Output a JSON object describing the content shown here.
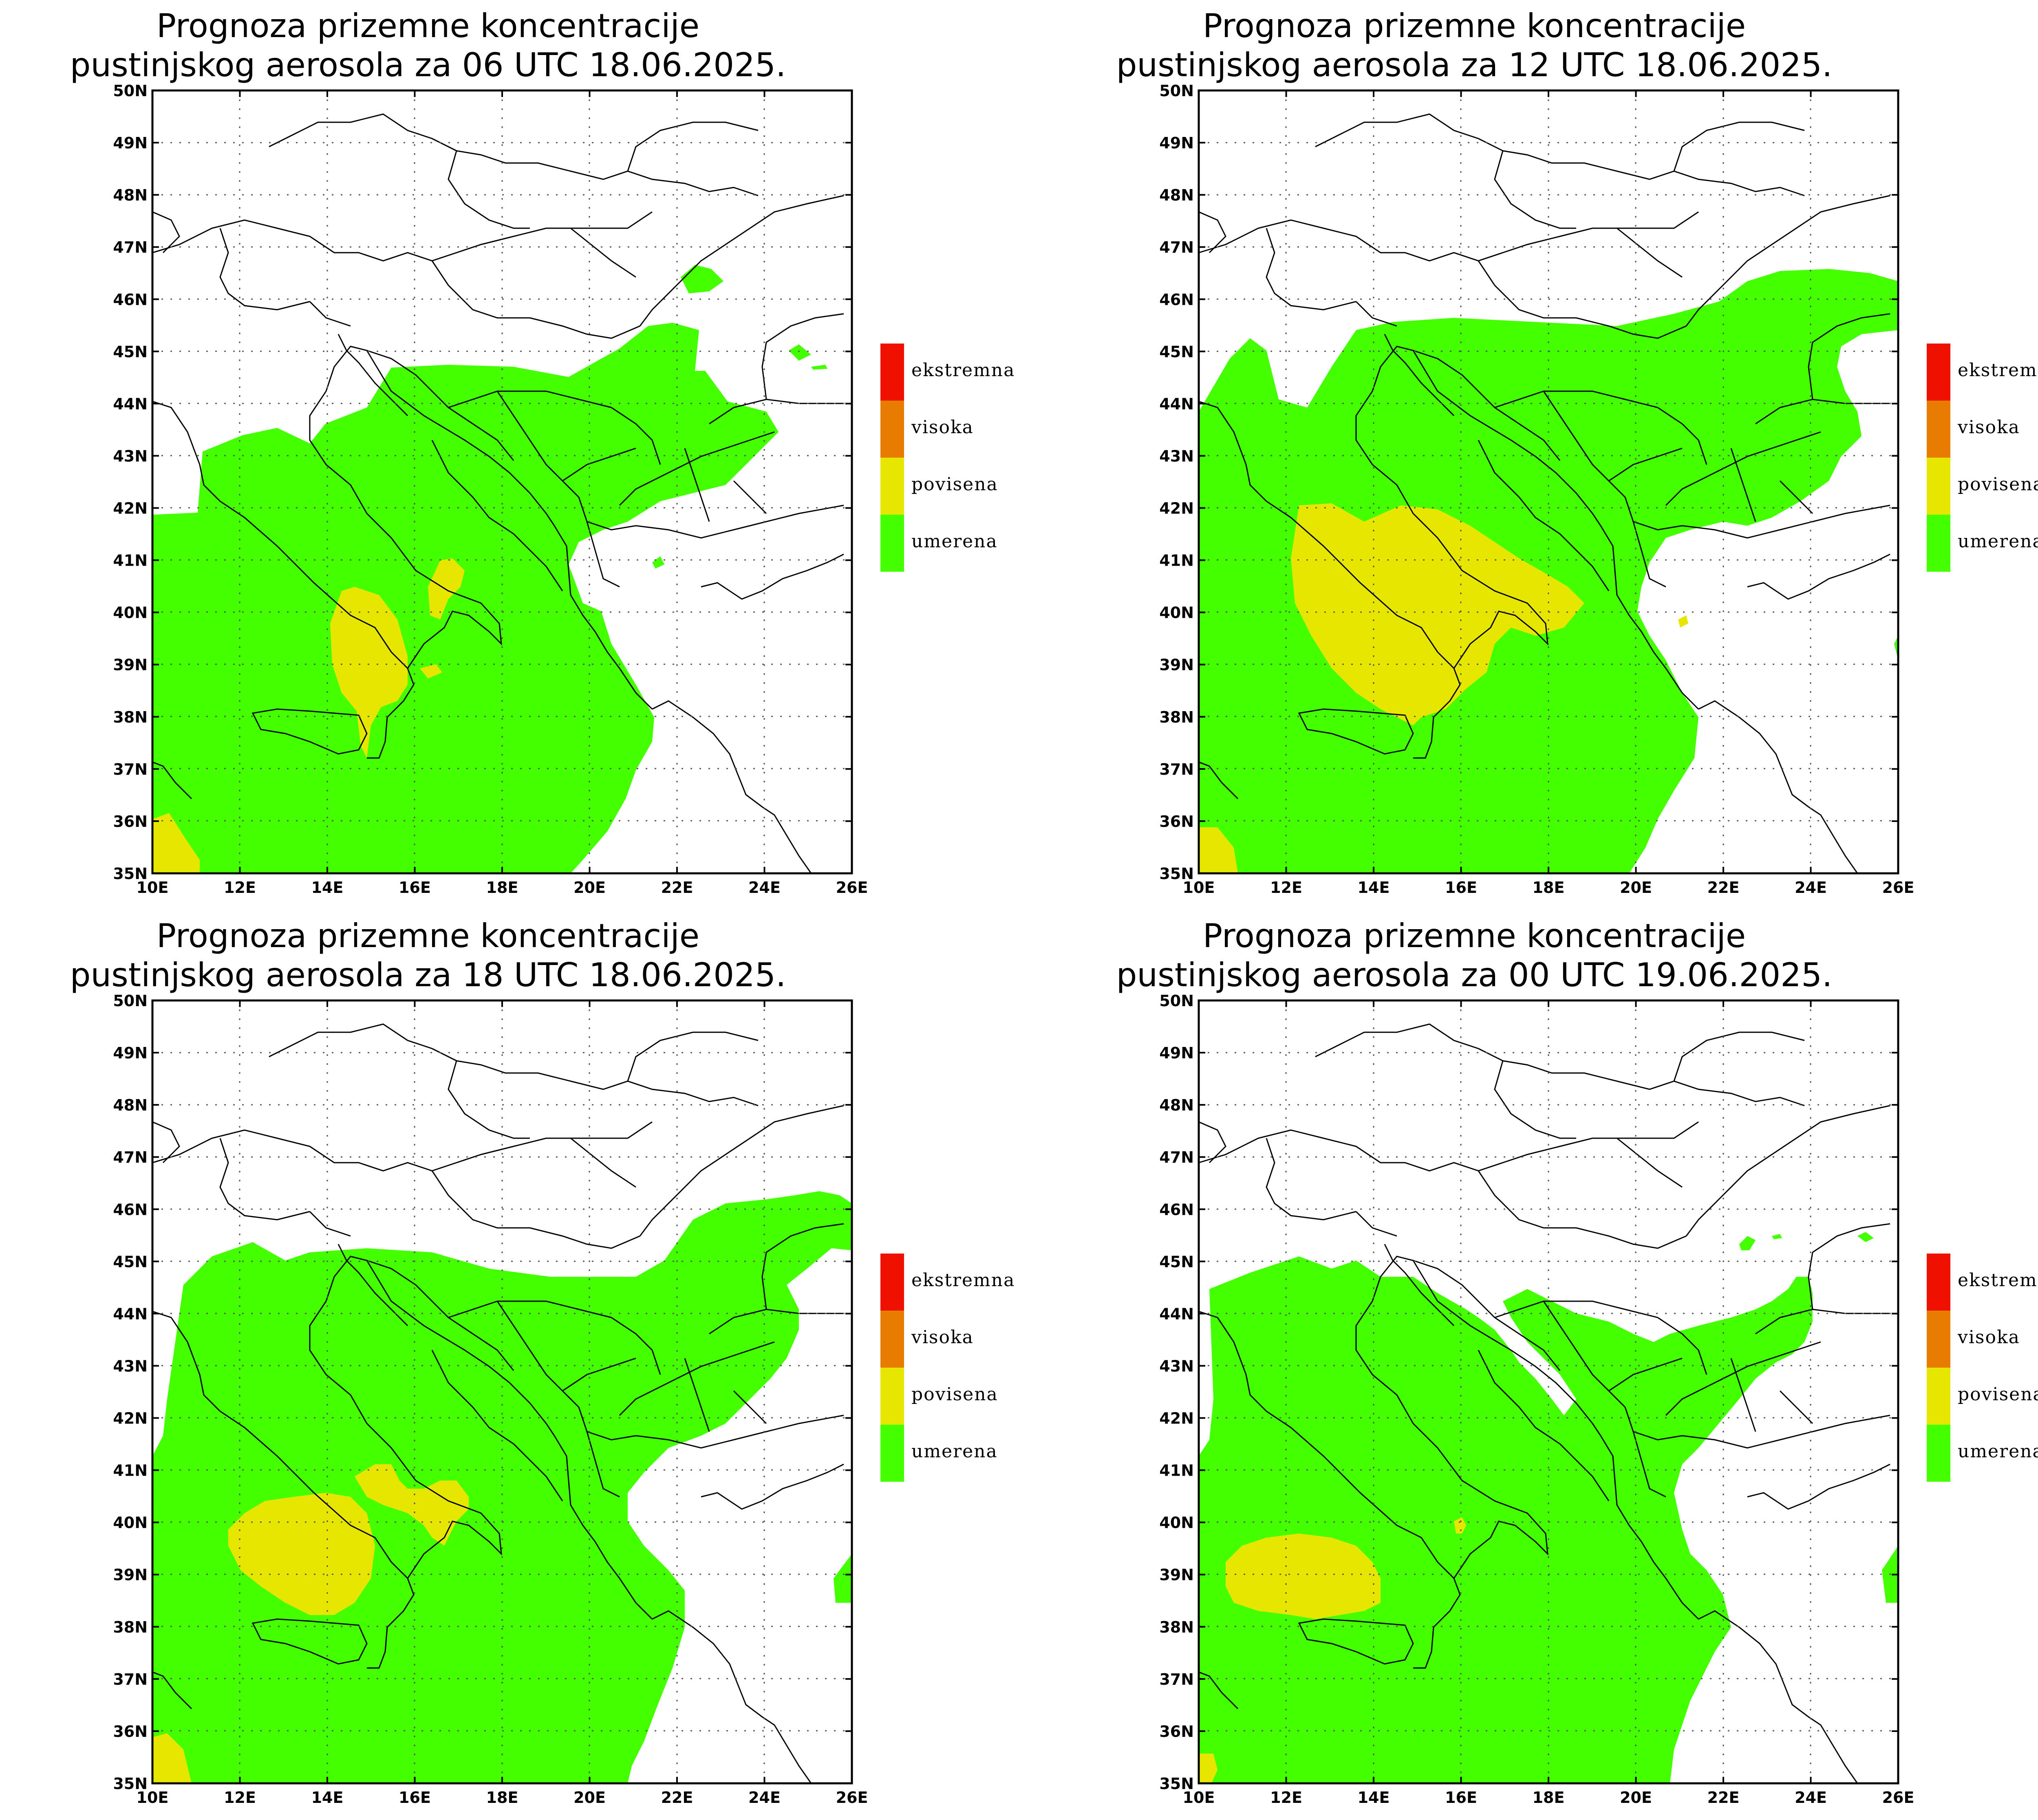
{
  "colors": {
    "umerena": "#44ff00",
    "povisena": "#e6e600",
    "visoka": "#e87c00",
    "ekstremna": "#ee1100",
    "border": "#000000"
  },
  "axes": {
    "y_ticks": [
      "50N",
      "49N",
      "48N",
      "47N",
      "46N",
      "45N",
      "44N",
      "43N",
      "42N",
      "41N",
      "40N",
      "39N",
      "38N",
      "37N",
      "36N",
      "35N"
    ],
    "x_ticks": [
      "10E",
      "12E",
      "14E",
      "16E",
      "18E",
      "20E",
      "22E",
      "24E",
      "26E"
    ],
    "lat_range": [
      35,
      50
    ],
    "lon_range": [
      10,
      26
    ],
    "grid": "dotted"
  },
  "legend": {
    "items": [
      {
        "label": "ekstremna",
        "color": "#ee1100"
      },
      {
        "label": "visoka",
        "color": "#e87c00"
      },
      {
        "label": "povisena",
        "color": "#e6e600"
      },
      {
        "label": "umerena",
        "color": "#44ff00"
      }
    ]
  },
  "panels": [
    {
      "title_line1": "Prognoza prizemne koncentracije",
      "title_line2": "pustinjskog aerosola za 06 UTC 18.06.2025."
    },
    {
      "title_line1": "Prognoza prizemne koncentracije",
      "title_line2": "pustinjskog aerosola za 12 UTC 18.06.2025."
    },
    {
      "title_line1": "Prognoza prizemne koncentracije",
      "title_line2": "pustinjskog aerosola za 18 UTC 18.06.2025."
    },
    {
      "title_line1": "Prognoza prizemne koncentracije",
      "title_line2": "pustinjskog aerosola za 00 UTC 19.06.2025."
    }
  ]
}
